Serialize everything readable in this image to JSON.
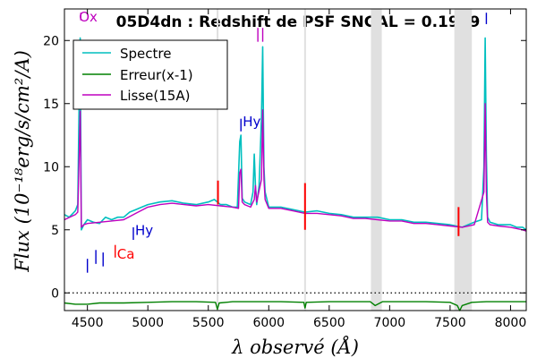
{
  "chart_data": {
    "type": "line",
    "title": "05D4dn : Redshift de PSF SNGAL = 0.1909",
    "xlabel": "λ observé (Å)",
    "ylabel": "Flux (10⁻¹⁸erg/s/cm²/A)",
    "xlim": [
      4310,
      8130
    ],
    "ylim": [
      -1.4,
      22.5
    ],
    "xticks": [
      4500,
      5000,
      5500,
      6000,
      6500,
      7000,
      7500,
      8000
    ],
    "yticks": [
      0,
      5,
      10,
      15,
      20
    ],
    "legend": {
      "position": "top-left",
      "entries": [
        {
          "name": "Spectre",
          "color": "#00bfbf"
        },
        {
          "name": "Erreur(x-1)",
          "color": "#008000"
        },
        {
          "name": "Lisse(15A)",
          "color": "#bf00bf"
        }
      ]
    },
    "zero_line": {
      "y": 0,
      "style": "dotted"
    },
    "shaded_bands": [
      {
        "x0": 5569,
        "x1": 5583
      },
      {
        "x0": 6293,
        "x1": 6307
      },
      {
        "x0": 6845,
        "x1": 6935
      },
      {
        "x0": 7535,
        "x1": 7680
      }
    ],
    "series": [
      {
        "name": "Spectre",
        "color": "#00bfbf",
        "x": [
          4310,
          4350,
          4400,
          4420,
          4430,
          4440,
          4450,
          4470,
          4500,
          4550,
          4600,
          4650,
          4700,
          4750,
          4800,
          4850,
          4900,
          4950,
          5000,
          5100,
          5200,
          5300,
          5400,
          5500,
          5550,
          5600,
          5650,
          5700,
          5740,
          5760,
          5770,
          5780,
          5800,
          5850,
          5870,
          5880,
          5890,
          5900,
          5920,
          5940,
          5950,
          5960,
          5970,
          6000,
          6100,
          6200,
          6300,
          6400,
          6500,
          6600,
          6700,
          6800,
          6900,
          7000,
          7100,
          7200,
          7300,
          7400,
          7500,
          7600,
          7700,
          7760,
          7780,
          7790,
          7800,
          7810,
          7830,
          7900,
          8000,
          8050,
          8100,
          8130
        ],
        "values": [
          6.2,
          6.0,
          6.5,
          7.0,
          14.0,
          20.2,
          5.0,
          5.4,
          5.8,
          5.6,
          5.5,
          6.0,
          5.8,
          6.0,
          6.0,
          6.4,
          6.6,
          6.8,
          7.0,
          7.2,
          7.3,
          7.1,
          7.0,
          7.2,
          7.4,
          7.0,
          7.0,
          6.8,
          6.8,
          12.0,
          12.5,
          7.5,
          7.2,
          7.0,
          8.0,
          11.0,
          8.5,
          7.0,
          8.5,
          14.0,
          19.5,
          10.0,
          8.0,
          6.8,
          6.8,
          6.6,
          6.4,
          6.5,
          6.3,
          6.2,
          6.0,
          6.0,
          6.0,
          5.8,
          5.8,
          5.6,
          5.6,
          5.5,
          5.4,
          5.2,
          5.6,
          5.8,
          10.0,
          20.2,
          11.0,
          6.0,
          5.6,
          5.4,
          5.4,
          5.2,
          5.2,
          5.0
        ]
      },
      {
        "name": "Erreur(x-1)",
        "color": "#008000",
        "x": [
          4310,
          4400,
          4500,
          4600,
          4700,
          4800,
          5000,
          5200,
          5400,
          5560,
          5575,
          5590,
          5700,
          5900,
          6100,
          6290,
          6300,
          6310,
          6500,
          6700,
          6840,
          6880,
          6940,
          7100,
          7300,
          7500,
          7560,
          7580,
          7600,
          7680,
          7800,
          8000,
          8130
        ],
        "values": [
          -0.8,
          -0.9,
          -0.9,
          -0.8,
          -0.8,
          -0.8,
          -0.75,
          -0.7,
          -0.7,
          -0.75,
          -1.3,
          -0.8,
          -0.7,
          -0.7,
          -0.7,
          -0.75,
          -1.2,
          -0.75,
          -0.7,
          -0.7,
          -0.7,
          -1.0,
          -0.7,
          -0.7,
          -0.7,
          -0.75,
          -1.0,
          -1.4,
          -1.0,
          -0.75,
          -0.7,
          -0.7,
          -0.7
        ]
      },
      {
        "name": "Lisse(15A)",
        "color": "#bf00bf",
        "x": [
          4310,
          4400,
          4420,
          4430,
          4440,
          4450,
          4470,
          4500,
          4600,
          4700,
          4800,
          4900,
          5000,
          5100,
          5200,
          5300,
          5400,
          5500,
          5600,
          5700,
          5750,
          5760,
          5770,
          5780,
          5800,
          5850,
          5880,
          5890,
          5900,
          5940,
          5950,
          5960,
          5970,
          6000,
          6100,
          6200,
          6300,
          6400,
          6500,
          6600,
          6700,
          6800,
          6900,
          7000,
          7100,
          7200,
          7300,
          7400,
          7500,
          7600,
          7700,
          7780,
          7790,
          7800,
          7810,
          7830,
          7900,
          8000,
          8100,
          8130
        ],
        "values": [
          5.8,
          6.2,
          6.4,
          10.0,
          14.4,
          5.2,
          5.4,
          5.5,
          5.6,
          5.7,
          5.8,
          6.3,
          6.8,
          7.0,
          7.1,
          7.0,
          6.9,
          7.0,
          6.9,
          6.8,
          6.7,
          9.5,
          9.8,
          7.2,
          7.0,
          6.8,
          7.4,
          8.5,
          7.2,
          9.0,
          14.5,
          9.0,
          7.4,
          6.7,
          6.7,
          6.5,
          6.3,
          6.3,
          6.2,
          6.1,
          5.9,
          5.9,
          5.8,
          5.7,
          5.7,
          5.5,
          5.5,
          5.4,
          5.3,
          5.2,
          5.4,
          8.0,
          15.0,
          8.0,
          5.6,
          5.4,
          5.3,
          5.2,
          5.0,
          4.9
        ]
      }
    ],
    "line_markers": [
      {
        "label": "Ox",
        "x": 4445,
        "y_top": 22.2,
        "y_bottom": 21.6,
        "color": "#bf00bf",
        "text_offset_x": -2,
        "text_y": 21.5
      },
      {
        "label": "",
        "x": 5910,
        "y_top": 21.0,
        "y_bottom": 19.9,
        "color": "#bf00bf"
      },
      {
        "label": "",
        "x": 5950,
        "y_top": 21.0,
        "y_bottom": 19.9,
        "color": "#bf00bf"
      },
      {
        "label": "",
        "x": 7800,
        "y_top": 22.2,
        "y_bottom": 21.3,
        "color": "#0000cc"
      },
      {
        "label": "Hy",
        "x": 5770,
        "y_top": 13.8,
        "y_bottom": 12.8,
        "color": "#0000cc",
        "text_offset_x": 2,
        "text_y": 13.2
      },
      {
        "label": "Hy",
        "x": 4880,
        "y_top": 5.2,
        "y_bottom": 4.2,
        "color": "#0000cc",
        "text_offset_x": 2,
        "text_y": 4.6
      },
      {
        "label": "Ca",
        "x": 4730,
        "y_top": 3.8,
        "y_bottom": 2.8,
        "color": "#ff0000",
        "text_offset_x": 2,
        "text_y": 2.7
      },
      {
        "label": "",
        "x": 4500,
        "y_top": 2.7,
        "y_bottom": 1.6,
        "color": "#0000cc"
      },
      {
        "label": "",
        "x": 4570,
        "y_top": 3.4,
        "y_bottom": 2.3,
        "color": "#0000cc"
      },
      {
        "label": "",
        "x": 4630,
        "y_top": 3.2,
        "y_bottom": 2.1,
        "color": "#0000cc"
      }
    ],
    "red_spikes": [
      {
        "x": 5580,
        "y_low": 7.0,
        "y_high": 8.9
      },
      {
        "x": 6300,
        "y_low": 5.0,
        "y_high": 8.7
      },
      {
        "x": 7570,
        "y_low": 4.5,
        "y_high": 6.8
      }
    ]
  }
}
